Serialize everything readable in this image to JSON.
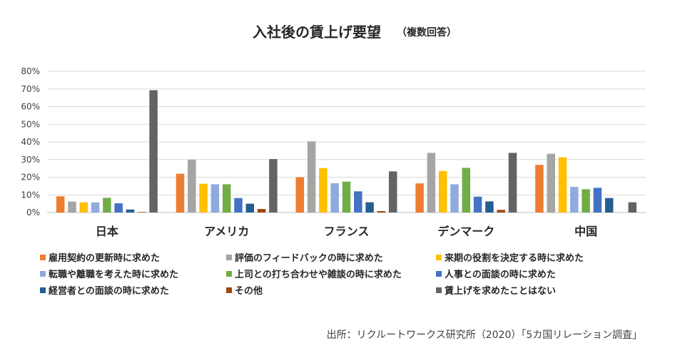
{
  "chart_data": {
    "type": "bar",
    "title": "入社後の賃上げ要望",
    "subtitle": "（複数回答）",
    "categories": [
      "日本",
      "アメリカ",
      "フランス",
      "デンマーク",
      "中国"
    ],
    "yticks": [
      "0%",
      "10%",
      "20%",
      "30%",
      "40%",
      "50%",
      "60%",
      "70%",
      "80%"
    ],
    "ylim": [
      0,
      80
    ],
    "grid": true,
    "legend_position": "bottom",
    "series": [
      {
        "name": "雇用契約の更新時に求めた",
        "color": "#ED7D31",
        "values": [
          9.2,
          22,
          20,
          16.5,
          27
        ]
      },
      {
        "name": "評価のフィードバックの時に求めた",
        "color": "#A5A5A5",
        "values": [
          6.2,
          30,
          40.3,
          33.8,
          33.3
        ]
      },
      {
        "name": "来期の役割を決定する時に求めた",
        "color": "#FFC000",
        "values": [
          5.8,
          16.3,
          25.2,
          23.5,
          31.3
        ]
      },
      {
        "name": "転職や離職を考えた時に求めた",
        "color": "#8FAADC",
        "values": [
          5.7,
          16,
          16.6,
          16,
          14.5
        ]
      },
      {
        "name": "上司との打ち合わせや雑談の時に求めた",
        "color": "#70AD47",
        "values": [
          8.3,
          16,
          17.5,
          25.3,
          13.2
        ]
      },
      {
        "name": "人事との面談の時に求めた",
        "color": "#4472C4",
        "values": [
          5.2,
          8.2,
          12,
          9,
          14
        ]
      },
      {
        "name": "経営者との面談の時に求めた",
        "color": "#255E91",
        "values": [
          1.7,
          5,
          5.8,
          6.3,
          8.2
        ]
      },
      {
        "name": "その他",
        "color": "#9E480E",
        "values": [
          0.3,
          2,
          0.8,
          1.5,
          0
        ]
      },
      {
        "name": "賃上げを求めたことはない",
        "color": "#636363",
        "values": [
          69.3,
          30.3,
          23.3,
          33.8,
          5.8
        ]
      }
    ]
  },
  "source": "出所：リクルートワークス研究所（2020）「5カ国リレーション調査」"
}
